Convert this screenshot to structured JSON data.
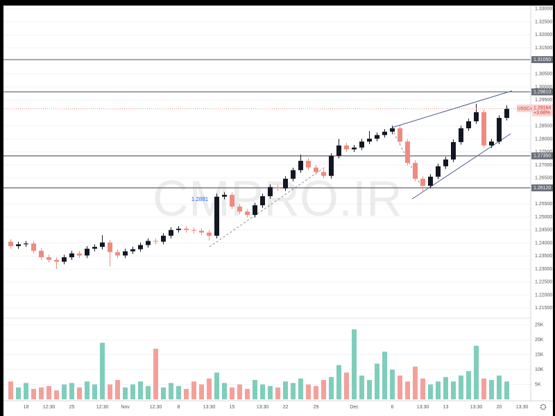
{
  "chart_data": [
    {
      "type": "candlestick",
      "symbol": "USDCAD",
      "last": 1.29164,
      "change": {
        "value": 3.68,
        "label": "+3.68%"
      },
      "annotation": 1.2881,
      "watermark": "CMPRO.IR",
      "categories": [
        null,
        null,
        "18",
        null,
        null,
        "12:30",
        null,
        null,
        "25",
        null,
        null,
        null,
        "12:30",
        null,
        null,
        "Nov",
        null,
        null,
        null,
        "12:30",
        null,
        null,
        "8",
        null,
        null,
        null,
        "13:30",
        null,
        null,
        "15",
        null,
        null,
        null,
        "13:30",
        null,
        null,
        "22",
        null,
        null,
        null,
        "29",
        null,
        null,
        null,
        null,
        "Dec",
        null,
        null,
        null,
        null,
        "6",
        null,
        null,
        null,
        "13:30",
        null,
        null,
        "13",
        null,
        null,
        null,
        "13:30",
        null,
        null,
        "20",
        null,
        null,
        "13:30"
      ],
      "open": [
        1.2405,
        1.2388,
        1.2395,
        1.2398,
        1.237,
        1.2345,
        1.2335,
        1.2328,
        1.2345,
        1.236,
        1.2352,
        1.2378,
        1.2385,
        1.2402,
        1.2365,
        1.2352,
        1.2368,
        1.2376,
        1.2392,
        1.2408,
        1.2405,
        1.2428,
        1.245,
        1.2455,
        1.245,
        1.2447,
        1.244,
        1.2428,
        1.2578,
        1.2585,
        1.254,
        1.2521,
        1.2508,
        1.2545,
        1.258,
        1.2615,
        1.261,
        1.2647,
        1.268,
        1.2716,
        1.269,
        1.2673,
        1.2658,
        1.2735,
        1.2775,
        1.276,
        1.2767,
        1.279,
        1.2801,
        1.2815,
        1.2828,
        1.2841,
        1.279,
        1.2708,
        1.2647,
        1.262,
        1.2655,
        1.2695,
        1.2721,
        1.2788,
        1.2841,
        1.2868,
        1.2903,
        1.2775,
        1.279,
        1.2881,
        null,
        null
      ],
      "high": [
        1.2415,
        1.2405,
        1.2408,
        1.2408,
        1.238,
        1.2355,
        1.2345,
        1.2355,
        1.237,
        1.237,
        1.2388,
        1.2395,
        1.243,
        1.2412,
        1.2375,
        1.2378,
        1.2386,
        1.2402,
        1.2418,
        1.2418,
        1.2438,
        1.246,
        1.2465,
        1.2465,
        1.246,
        1.2457,
        1.245,
        1.259,
        1.2595,
        1.2595,
        1.255,
        1.2531,
        1.2555,
        1.259,
        1.2625,
        1.2625,
        1.2657,
        1.269,
        1.274,
        1.2726,
        1.27,
        1.2683,
        1.2745,
        1.28,
        1.2785,
        1.2777,
        1.28,
        1.283,
        1.2825,
        1.2838,
        1.2851,
        1.2851,
        1.28,
        1.2718,
        1.2657,
        1.2665,
        1.2705,
        1.2731,
        1.2798,
        1.2851,
        1.2878,
        1.2935,
        1.2913,
        1.28,
        1.2891,
        1.293,
        null,
        null
      ],
      "low": [
        1.2378,
        1.2378,
        1.2385,
        1.236,
        1.2335,
        1.2325,
        1.23,
        1.2318,
        1.2335,
        1.2342,
        1.2342,
        1.2368,
        1.2375,
        1.231,
        1.2342,
        1.2342,
        1.2358,
        1.2366,
        1.2382,
        1.2395,
        1.2395,
        1.2418,
        1.244,
        1.244,
        1.2437,
        1.243,
        1.241,
        1.2418,
        1.2568,
        1.253,
        1.2511,
        1.2498,
        1.2498,
        1.2535,
        1.257,
        1.26,
        1.26,
        1.2637,
        1.267,
        1.268,
        1.2663,
        1.2648,
        1.2648,
        1.2725,
        1.275,
        1.275,
        1.2757,
        1.278,
        1.2791,
        1.2805,
        1.2818,
        1.278,
        1.2698,
        1.2637,
        1.26,
        1.261,
        1.2645,
        1.2685,
        1.2711,
        1.2778,
        1.2831,
        1.2858,
        1.2765,
        1.2765,
        1.278,
        1.2871,
        null,
        null
      ],
      "close": [
        1.2388,
        1.2395,
        1.2398,
        1.237,
        1.2345,
        1.2335,
        1.2328,
        1.2345,
        1.236,
        1.2352,
        1.2378,
        1.2385,
        1.2402,
        1.2365,
        1.2352,
        1.2368,
        1.2376,
        1.2392,
        1.2408,
        1.2405,
        1.2428,
        1.245,
        1.2455,
        1.245,
        1.2447,
        1.244,
        1.2428,
        1.2578,
        1.2585,
        1.254,
        1.2521,
        1.2508,
        1.2545,
        1.258,
        1.2615,
        1.261,
        1.2647,
        1.268,
        1.2716,
        1.269,
        1.2673,
        1.2658,
        1.2735,
        1.2775,
        1.276,
        1.2767,
        1.279,
        1.2801,
        1.2815,
        1.2828,
        1.2841,
        1.279,
        1.2708,
        1.2647,
        1.262,
        1.2655,
        1.2695,
        1.2721,
        1.2788,
        1.2841,
        1.2868,
        1.2903,
        1.2775,
        1.279,
        1.2881,
        1.2916,
        null,
        null
      ],
      "up_color": "#131722",
      "down_color": "#f08a80",
      "ylim": [
        1.2116,
        1.3313
      ],
      "yticks": [
        {
          "value": 1.215,
          "label": "1.21500"
        },
        {
          "value": 1.22,
          "label": "1.22000"
        },
        {
          "value": 1.225,
          "label": "1.22500"
        },
        {
          "value": 1.23,
          "label": "1.23000"
        },
        {
          "value": 1.235,
          "label": "1.23500"
        },
        {
          "value": 1.24,
          "label": "1.24000"
        },
        {
          "value": 1.245,
          "label": "1.24500"
        },
        {
          "value": 1.25,
          "label": "1.25000"
        },
        {
          "value": 1.255,
          "label": "1.25500"
        },
        {
          "value": 1.265,
          "label": "1.26500"
        },
        {
          "value": 1.27,
          "label": "1.27000"
        },
        {
          "value": 1.275,
          "label": "1.27500"
        },
        {
          "value": 1.28,
          "label": "1.28000"
        },
        {
          "value": 1.285,
          "label": "1.28500"
        },
        {
          "value": 1.295,
          "label": "1.29500"
        },
        {
          "value": 1.3,
          "label": "1.30000"
        },
        {
          "value": 1.305,
          "label": "1.30500"
        },
        {
          "value": 1.315,
          "label": "1.31500"
        },
        {
          "value": 1.32,
          "label": "1.32000"
        },
        {
          "value": 1.325,
          "label": "1.32500"
        },
        {
          "value": 1.33,
          "label": "1.33000"
        }
      ],
      "levels": [
        {
          "value": 1.3105,
          "label": "1.31050"
        },
        {
          "value": 1.2981,
          "label": "1.29810"
        },
        {
          "value": 1.2735,
          "label": "1.27350"
        },
        {
          "value": 1.2612,
          "label": "1.26120"
        }
      ],
      "level_color": "#6b6f7a"
    },
    {
      "type": "bar",
      "values": [
        6000,
        4000,
        5500,
        3500,
        4000,
        4500,
        3000,
        5000,
        5500,
        4000,
        6000,
        5000,
        19000,
        5000,
        6500,
        4000,
        5000,
        6000,
        4500,
        17000,
        4000,
        5500,
        4500,
        3500,
        6000,
        5000,
        7000,
        9000,
        5500,
        4000,
        5000,
        3500,
        6500,
        5000,
        4500,
        4000,
        6000,
        5500,
        7000,
        5000,
        4500,
        6500,
        7500,
        11500,
        9000,
        23500,
        8000,
        6500,
        12000,
        16000,
        10000,
        8000,
        6000,
        11000,
        7000,
        5000,
        6000,
        7500,
        6000,
        8000,
        9500,
        18000,
        7000,
        6500,
        8000,
        6000,
        null,
        null
      ],
      "up_color": "#7fcdbb",
      "down_color": "#f4a09a",
      "ylim": [
        0,
        27000
      ],
      "yticks": [
        {
          "value": 5000,
          "label": "5K"
        },
        {
          "value": 10000,
          "label": "10K"
        },
        {
          "value": 15000,
          "label": "15K"
        },
        {
          "value": 20000,
          "label": "20K"
        },
        {
          "value": 25000,
          "label": "25K"
        }
      ]
    }
  ]
}
